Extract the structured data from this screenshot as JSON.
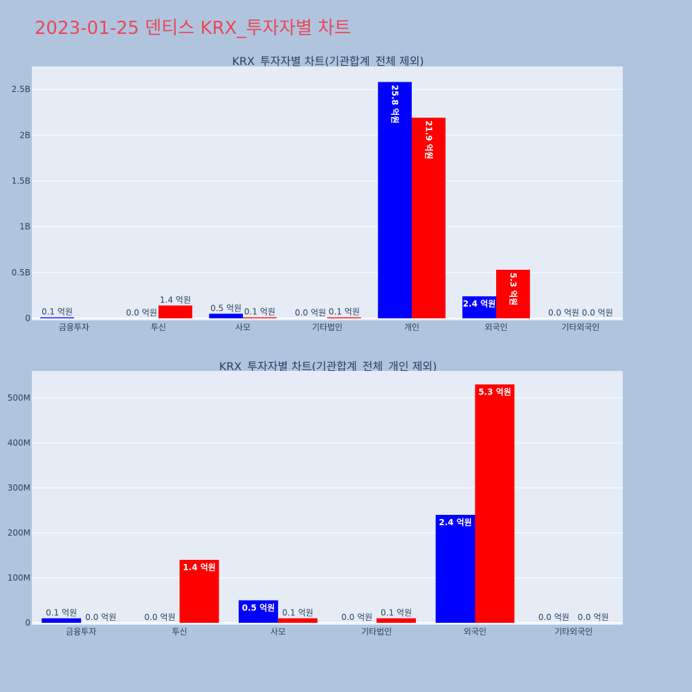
{
  "page_title": "2023-01-25 덴티스 KRX_투자자별 차트",
  "colors": {
    "background": "#b0c4de",
    "plot_bg": "#e5ecf6",
    "title": "#e8485a",
    "buy": "#0000ff",
    "sell": "#ff0000"
  },
  "chart_data": [
    {
      "type": "bar",
      "title": "KRX_투자자별 차트(기관합계_전체 제외)",
      "categories": [
        "금융투자",
        "투신",
        "사모",
        "기타법인",
        "개인",
        "외국인",
        "기타외국인"
      ],
      "ylim": [
        0,
        2750000000
      ],
      "ytick_values": [
        0,
        500000000,
        1000000000,
        1500000000,
        2000000000,
        2500000000
      ],
      "ytick_labels": [
        "0",
        "0.5B",
        "1B",
        "1.5B",
        "2B",
        "2.5B"
      ],
      "grid": true,
      "series": [
        {
          "color": "#0000ff",
          "values": [
            10000000,
            0,
            50000000,
            0,
            2580000000,
            240000000,
            0
          ],
          "labels": [
            "0.1 억원",
            "0.0 억원",
            "0.5 억원",
            "0.0 억원",
            "25.8 억원",
            "2.4 억원",
            "0.0 억원"
          ]
        },
        {
          "color": "#ff0000",
          "values": [
            0,
            140000000,
            10000000,
            10000000,
            2190000000,
            530000000,
            0
          ],
          "labels": [
            "",
            "1.4 억원",
            "0.1 억원",
            "0.1 억원",
            "21.9 억원",
            "5.3 억원",
            "0.0 억원"
          ]
        }
      ]
    },
    {
      "type": "bar",
      "title": "KRX_투자자별 차트(기관합계_전체_개인 제외)",
      "categories": [
        "금융투자",
        "투신",
        "사모",
        "기타법인",
        "외국인",
        "기타외국인"
      ],
      "ylim": [
        0,
        560000000
      ],
      "ytick_values": [
        0,
        100000000,
        200000000,
        300000000,
        400000000,
        500000000
      ],
      "ytick_labels": [
        "0",
        "100M",
        "200M",
        "300M",
        "400M",
        "500M"
      ],
      "grid": true,
      "series": [
        {
          "color": "#0000ff",
          "values": [
            10000000,
            0,
            50000000,
            0,
            240000000,
            0
          ],
          "labels": [
            "0.1 억원",
            "0.0 억원",
            "0.5 억원",
            "0.0 억원",
            "2.4 억원",
            "0.0 억원"
          ]
        },
        {
          "color": "#ff0000",
          "values": [
            0,
            140000000,
            10000000,
            10000000,
            530000000,
            0
          ],
          "labels": [
            "0.0 억원",
            "1.4 억원",
            "0.1 억원",
            "0.1 억원",
            "5.3 억원",
            "0.0 억원"
          ]
        }
      ]
    }
  ]
}
